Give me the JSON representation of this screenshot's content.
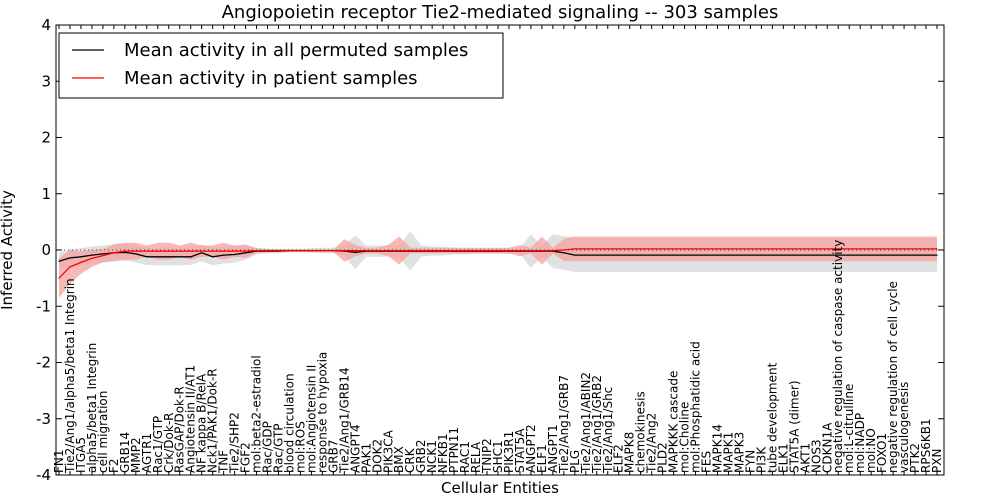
{
  "chart_data": {
    "type": "line",
    "title": "Angiopoietin receptor Tie2-mediated signaling -- 303 samples",
    "xlabel": "Cellular Entities",
    "ylabel": "Inferred Activity",
    "ylim": [
      -4,
      4
    ],
    "yticks": [
      -4,
      -3,
      -2,
      -1,
      0,
      1,
      2,
      3,
      4
    ],
    "legend_position": "top-left",
    "categories": [
      "FN1",
      "Tie2/Ang1/alpha5/beta1 Integrin",
      "ITGA5",
      "alpha5/beta1 Integrin",
      "cell migration",
      "F2",
      "GRB14",
      "MMP2",
      "AGTR1",
      "Rac1/GTP",
      "Crk/Dok-R",
      "RasGAP/Dok-R",
      "Angiotensin II/AT1",
      "NF kappa B/RelA",
      "Nck1/PAK1/Dok-R",
      "TNF",
      "Tie2/SHP2",
      "FGF2",
      "mol:beta2-estradiol",
      "Rac/GDP",
      "Rac/GTP",
      "blood circulation",
      "mol:ROS",
      "mol:Angiotensin II",
      "response to hypoxia",
      "GRB7",
      "Tie2/Ang1/GRB14",
      "ANGPT4",
      "PAK1",
      "DOK2",
      "PIK3CA",
      "BMX",
      "CRK",
      "GRB2",
      "NCK1",
      "NFKB1",
      "PTPN11",
      "RAC1",
      "RELA",
      "TNIP2",
      "SHC1",
      "PIK3R1",
      "STAT5A",
      "ANGPT2",
      "ELF1",
      "ANGPT1",
      "Tie2/Ang1/GRB7",
      "PLG",
      "Tie2/Ang1/ABIN2",
      "Tie2/Ang1/GRB2",
      "Tie2/Ang1/Shc",
      "ELF2",
      "MAPK8",
      "chemokinesis",
      "Tie2/Ang2",
      "PLD2",
      "MAPKKK cascade",
      "mol:Choline",
      "mol:Phosphatidic acid",
      "FES",
      "MAPK14",
      "MAPK1",
      "MAPK3",
      "FYN",
      "PI3K",
      "tube development",
      "ELK1",
      "STAT5A (dimer)",
      "AKT1",
      "NOS3",
      "CDKN1A",
      "negative regulation of caspase activity",
      "mol:L-citrulline",
      "mol:NADP",
      "mol:NO",
      "FOXO1",
      "negative regulation of cell cycle",
      "vasculogenesis",
      "PTK2",
      "RPS6KB1",
      "PXN"
    ],
    "series": [
      {
        "name": "Mean activity in all permuted samples",
        "color": "#000000",
        "band_color": "#c8c8c8",
        "values": [
          -0.2,
          -0.14,
          -0.12,
          -0.09,
          -0.07,
          -0.05,
          -0.04,
          -0.07,
          -0.12,
          -0.12,
          -0.12,
          -0.12,
          -0.12,
          -0.05,
          -0.12,
          -0.09,
          -0.08,
          -0.05,
          -0.02,
          -0.02,
          -0.02,
          -0.01,
          -0.01,
          -0.01,
          -0.01,
          -0.01,
          -0.02,
          -0.04,
          -0.02,
          -0.02,
          -0.02,
          -0.02,
          -0.02,
          -0.02,
          -0.02,
          -0.02,
          -0.02,
          -0.02,
          -0.02,
          -0.02,
          -0.02,
          -0.02,
          -0.02,
          -0.02,
          -0.02,
          -0.02,
          -0.05,
          -0.09,
          -0.09,
          -0.09,
          -0.09,
          -0.09,
          -0.09,
          -0.09,
          -0.09,
          -0.09,
          -0.09,
          -0.09,
          -0.09,
          -0.09,
          -0.09,
          -0.09,
          -0.09,
          -0.09,
          -0.09,
          -0.09,
          -0.09,
          -0.09,
          -0.09,
          -0.09,
          -0.09,
          -0.09,
          -0.09,
          -0.09,
          -0.09,
          -0.09,
          -0.09,
          -0.09,
          -0.09,
          -0.09,
          -0.09
        ],
        "spread": [
          0.15,
          0.15,
          0.15,
          0.15,
          0.15,
          0.15,
          0.15,
          0.15,
          0.15,
          0.15,
          0.15,
          0.15,
          0.15,
          0.15,
          0.15,
          0.15,
          0.15,
          0.12,
          0.06,
          0.04,
          0.04,
          0.03,
          0.03,
          0.04,
          0.05,
          0.05,
          0.1,
          0.3,
          0.1,
          0.1,
          0.1,
          0.1,
          0.35,
          0.1,
          0.08,
          0.08,
          0.06,
          0.06,
          0.05,
          0.05,
          0.05,
          0.05,
          0.05,
          0.3,
          0.1,
          0.3,
          0.3,
          0.3,
          0.3,
          0.3,
          0.3,
          0.3,
          0.3,
          0.3,
          0.3,
          0.3,
          0.3,
          0.3,
          0.3,
          0.3,
          0.3,
          0.3,
          0.3,
          0.3,
          0.3,
          0.3,
          0.3,
          0.3,
          0.3,
          0.3,
          0.3,
          0.3,
          0.3,
          0.3,
          0.3,
          0.3,
          0.3,
          0.3,
          0.3,
          0.3,
          0.3
        ]
      },
      {
        "name": "Mean activity in patient samples",
        "color": "#ff0000",
        "band_color": "#f4a0a0",
        "values": [
          -0.5,
          -0.3,
          -0.22,
          -0.15,
          -0.1,
          -0.05,
          -0.02,
          -0.02,
          -0.02,
          -0.02,
          -0.02,
          -0.02,
          -0.02,
          -0.02,
          -0.02,
          -0.02,
          -0.02,
          -0.02,
          -0.01,
          -0.01,
          -0.01,
          -0.01,
          -0.01,
          -0.01,
          -0.01,
          -0.01,
          -0.01,
          -0.01,
          -0.01,
          -0.01,
          -0.01,
          -0.01,
          -0.01,
          -0.01,
          -0.01,
          -0.01,
          -0.01,
          -0.01,
          -0.01,
          -0.01,
          -0.01,
          -0.01,
          -0.01,
          -0.01,
          -0.01,
          -0.01,
          0,
          0.02,
          0.02,
          0.02,
          0.02,
          0.02,
          0.02,
          0.02,
          0.02,
          0.02,
          0.02,
          0.02,
          0.02,
          0.02,
          0.02,
          0.02,
          0.02,
          0.02,
          0.02,
          0.02,
          0.02,
          0.02,
          0.02,
          0.02,
          0.02,
          0.02,
          0.02,
          0.02,
          0.02,
          0.02,
          0.02,
          0.02,
          0.02,
          0.02,
          0.02
        ],
        "spread": [
          0.35,
          0.3,
          0.2,
          0.15,
          0.12,
          0.15,
          0.15,
          0.15,
          0.1,
          0.15,
          0.15,
          0.1,
          0.15,
          0.1,
          0.1,
          0.15,
          0.1,
          0.12,
          0.04,
          0.03,
          0.02,
          0.02,
          0.02,
          0.02,
          0.02,
          0.02,
          0.2,
          0.1,
          0.05,
          0.05,
          0.1,
          0.25,
          0.05,
          0.05,
          0.05,
          0.05,
          0.05,
          0.05,
          0.05,
          0.05,
          0.05,
          0.05,
          0.1,
          0.05,
          0.25,
          0.05,
          0.2,
          0.22,
          0.22,
          0.22,
          0.22,
          0.22,
          0.22,
          0.22,
          0.22,
          0.22,
          0.22,
          0.22,
          0.22,
          0.22,
          0.22,
          0.22,
          0.22,
          0.22,
          0.22,
          0.22,
          0.22,
          0.22,
          0.22,
          0.22,
          0.22,
          0.22,
          0.22,
          0.22,
          0.22,
          0.22,
          0.22,
          0.22,
          0.22,
          0.22,
          0.22
        ]
      }
    ],
    "reference_line": {
      "y": 0,
      "style": "dotted"
    }
  }
}
